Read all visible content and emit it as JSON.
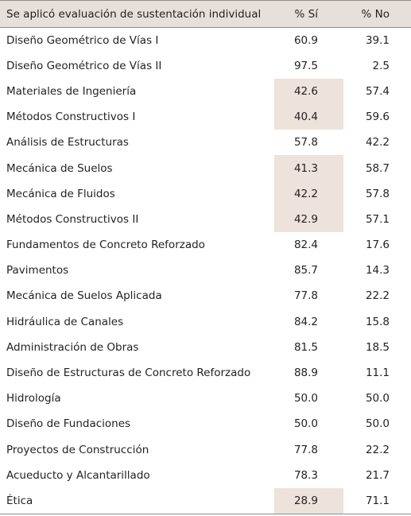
{
  "table": {
    "headers": {
      "course": "Se aplicó evaluación de sustentación individual",
      "si": "% Sí",
      "no": "% No"
    },
    "highlight_color": "#ede2dc",
    "rows": [
      {
        "course": "Diseño Geométrico de Vías I",
        "si": "60.9",
        "no": "39.1",
        "highlight": false
      },
      {
        "course": "Diseño Geométrico de Vías II",
        "si": "97.5",
        "no": "2.5",
        "highlight": false
      },
      {
        "course": "Materiales de Ingeniería",
        "si": "42.6",
        "no": "57.4",
        "highlight": true
      },
      {
        "course": "Métodos Constructivos I",
        "si": "40.4",
        "no": "59.6",
        "highlight": true
      },
      {
        "course": "Análisis de Estructuras",
        "si": "57.8",
        "no": "42.2",
        "highlight": false
      },
      {
        "course": "Mecánica de Suelos",
        "si": "41.3",
        "no": "58.7",
        "highlight": true
      },
      {
        "course": "Mecánica de Fluidos",
        "si": "42.2",
        "no": "57.8",
        "highlight": true
      },
      {
        "course": "Métodos Constructivos II",
        "si": "42.9",
        "no": "57.1",
        "highlight": true
      },
      {
        "course": "Fundamentos de Concreto Reforzado",
        "si": "82.4",
        "no": "17.6",
        "highlight": false
      },
      {
        "course": "Pavimentos",
        "si": "85.7",
        "no": "14.3",
        "highlight": false
      },
      {
        "course": "Mecánica de Suelos Aplicada",
        "si": "77.8",
        "no": "22.2",
        "highlight": false
      },
      {
        "course": "Hidráulica de Canales",
        "si": "84.2",
        "no": "15.8",
        "highlight": false
      },
      {
        "course": "Administración de Obras",
        "si": "81.5",
        "no": "18.5",
        "highlight": false
      },
      {
        "course": "Diseño de Estructuras de Concreto Reforzado",
        "si": "88.9",
        "no": "11.1",
        "highlight": false
      },
      {
        "course": "Hidrología",
        "si": "50.0",
        "no": "50.0",
        "highlight": false
      },
      {
        "course": "Diseño de Fundaciones",
        "si": "50.0",
        "no": "50.0",
        "highlight": false
      },
      {
        "course": "Proyectos de Construcción",
        "si": "77.8",
        "no": "22.2",
        "highlight": false
      },
      {
        "course": "Acueducto y Alcantarillado",
        "si": "78.3",
        "no": "21.7",
        "highlight": false
      },
      {
        "course": "Ética",
        "si": "28.9",
        "no": "71.1",
        "highlight": true
      }
    ]
  }
}
